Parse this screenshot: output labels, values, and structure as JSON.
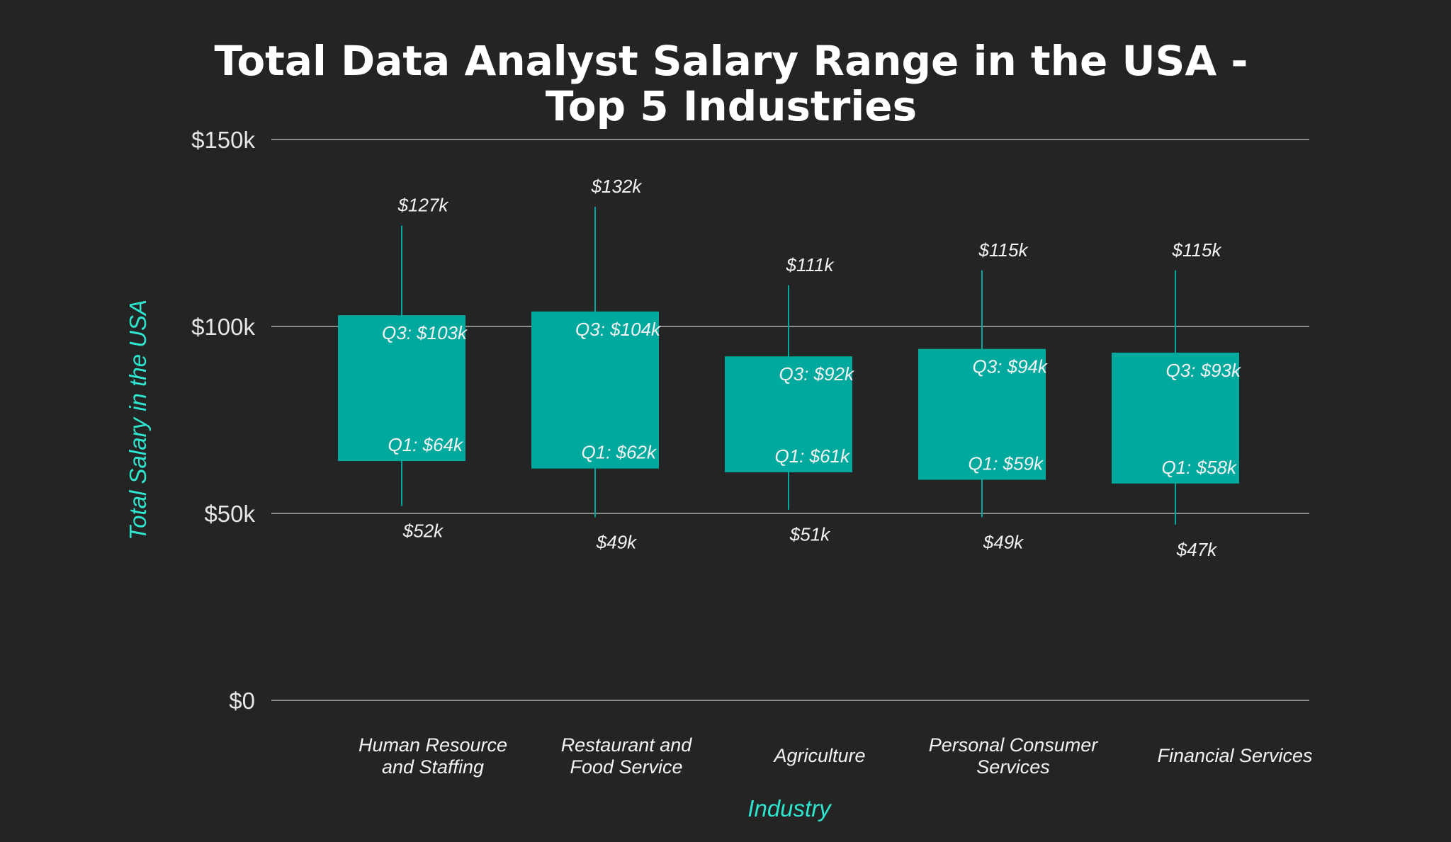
{
  "chart_data": {
    "type": "box",
    "title_lines": [
      "Total Data Analyst Salary Range in the USA -",
      "Top 5 Industries"
    ],
    "xlabel": "Industry",
    "ylabel": "Total Salary in the USA",
    "ylim": [
      0,
      150
    ],
    "y_unit": "thousand USD",
    "y_ticks": [
      0,
      50,
      100,
      150
    ],
    "y_tick_labels": [
      "$0",
      "$50k",
      "$100k",
      "$150k"
    ],
    "grid": true,
    "categories": [
      [
        "Human Resource",
        "and Staffing"
      ],
      [
        "Restaurant and",
        "Food Service"
      ],
      [
        "Agriculture"
      ],
      [
        "Personal Consumer",
        "Services"
      ],
      [
        "Financial Services"
      ]
    ],
    "series": [
      {
        "min": 52,
        "q1": 64,
        "q3": 103,
        "max": 127,
        "min_label": "$52k",
        "q1_label": "Q1: $64k",
        "q3_label": "Q3: $103k",
        "max_label": "$127k"
      },
      {
        "min": 49,
        "q1": 62,
        "q3": 104,
        "max": 132,
        "min_label": "$49k",
        "q1_label": "Q1: $62k",
        "q3_label": "Q3: $104k",
        "max_label": "$132k"
      },
      {
        "min": 51,
        "q1": 61,
        "q3": 92,
        "max": 111,
        "min_label": "$51k",
        "q1_label": "Q1: $61k",
        "q3_label": "Q3: $92k",
        "max_label": "$111k"
      },
      {
        "min": 49,
        "q1": 59,
        "q3": 94,
        "max": 115,
        "min_label": "$49k",
        "q1_label": "Q1: $59k",
        "q3_label": "Q3: $94k",
        "max_label": "$115k"
      },
      {
        "min": 47,
        "q1": 58,
        "q3": 93,
        "max": 115,
        "min_label": "$47k",
        "q1_label": "Q1: $58k",
        "q3_label": "Q3: $93k",
        "max_label": "$115k"
      }
    ],
    "colors": {
      "background": "#242424",
      "box": "#00a99d",
      "whisker": "#00a99d",
      "gridline": "#8a8a8a",
      "axis_label": "#2ee6cf",
      "text": "#f2f2f2"
    }
  }
}
